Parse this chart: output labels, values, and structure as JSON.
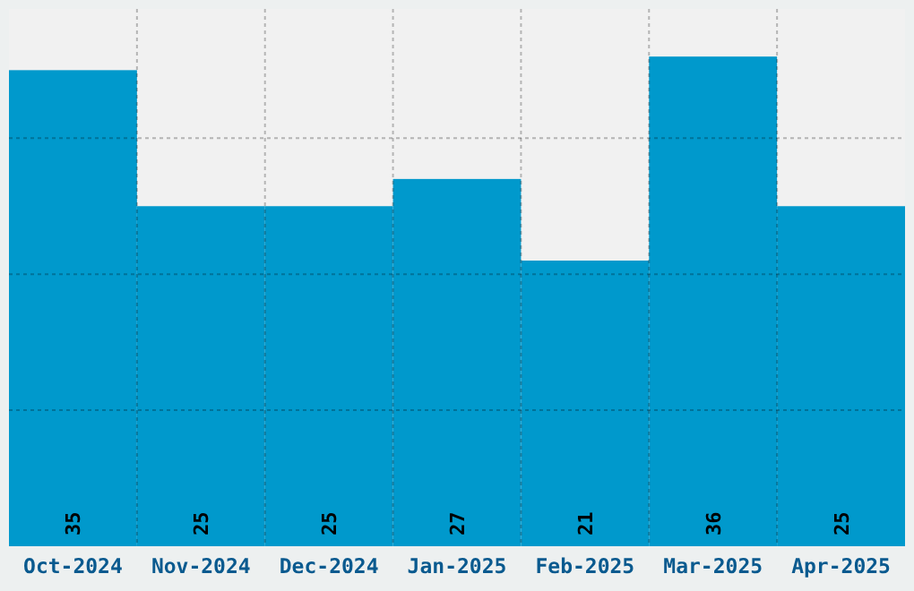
{
  "chart_data": {
    "type": "bar",
    "categories": [
      "Oct-2024",
      "Nov-2024",
      "Dec-2024",
      "Jan-2025",
      "Feb-2025",
      "Mar-2025",
      "Apr-2025"
    ],
    "values": [
      35,
      25,
      25,
      27,
      21,
      36,
      25
    ],
    "color": "#0099cc",
    "ylim": [
      0,
      39.5
    ],
    "yticks": [
      {
        "value": 10,
        "label": null
      },
      {
        "value": 20,
        "label": null
      },
      {
        "value": 30,
        "label": null
      }
    ],
    "tick_labels": "x",
    "grid": true,
    "data_labels": true
  }
}
